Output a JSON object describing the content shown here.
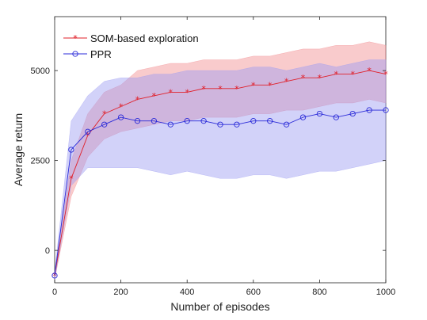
{
  "chart_data": {
    "type": "line",
    "title": "",
    "xlabel": "Number of episodes",
    "ylabel": "Average return",
    "xlim": [
      0,
      1000
    ],
    "ylim": [
      -900,
      6500
    ],
    "xticks": [
      0,
      200,
      400,
      600,
      800,
      1000
    ],
    "yticks": [
      0,
      2500,
      5000
    ],
    "grid": false,
    "legend_position": "top-left",
    "x": [
      0,
      50,
      100,
      150,
      200,
      250,
      300,
      350,
      400,
      450,
      500,
      550,
      600,
      650,
      700,
      750,
      800,
      850,
      900,
      950,
      1000
    ],
    "series": [
      {
        "name": "SOM-based exploration",
        "color": "#e0202a",
        "band_color": "#f28b8f",
        "marker": "asterisk",
        "values": [
          -700,
          2000,
          3200,
          3800,
          4000,
          4200,
          4300,
          4400,
          4400,
          4500,
          4500,
          4500,
          4600,
          4600,
          4700,
          4800,
          4800,
          4900,
          4900,
          5000,
          4900
        ],
        "band_lower": [
          -800,
          1500,
          2600,
          3100,
          3300,
          3400,
          3500,
          3600,
          3600,
          3700,
          3700,
          3700,
          3800,
          3800,
          3900,
          3900,
          4000,
          4100,
          4100,
          4200,
          4100
        ],
        "band_upper": [
          -600,
          2500,
          3800,
          4400,
          4600,
          5000,
          5100,
          5200,
          5200,
          5300,
          5300,
          5300,
          5400,
          5400,
          5500,
          5600,
          5600,
          5700,
          5700,
          5800,
          5700
        ]
      },
      {
        "name": "PPR",
        "color": "#2a2ad8",
        "band_color": "#9c9cf2",
        "marker": "circle",
        "values": [
          -700,
          2800,
          3300,
          3500,
          3700,
          3600,
          3600,
          3500,
          3600,
          3600,
          3500,
          3500,
          3600,
          3600,
          3500,
          3700,
          3800,
          3700,
          3800,
          3900,
          3900
        ],
        "band_lower": [
          -800,
          1800,
          2300,
          2300,
          2300,
          2300,
          2200,
          2100,
          2200,
          2100,
          2000,
          2000,
          2100,
          2100,
          2000,
          2100,
          2200,
          2200,
          2300,
          2400,
          2500
        ],
        "band_upper": [
          -600,
          3600,
          4300,
          4700,
          4800,
          4800,
          4900,
          4900,
          5000,
          5000,
          5000,
          5000,
          5100,
          5100,
          5000,
          5100,
          5200,
          5100,
          5200,
          5300,
          5300
        ]
      }
    ]
  }
}
